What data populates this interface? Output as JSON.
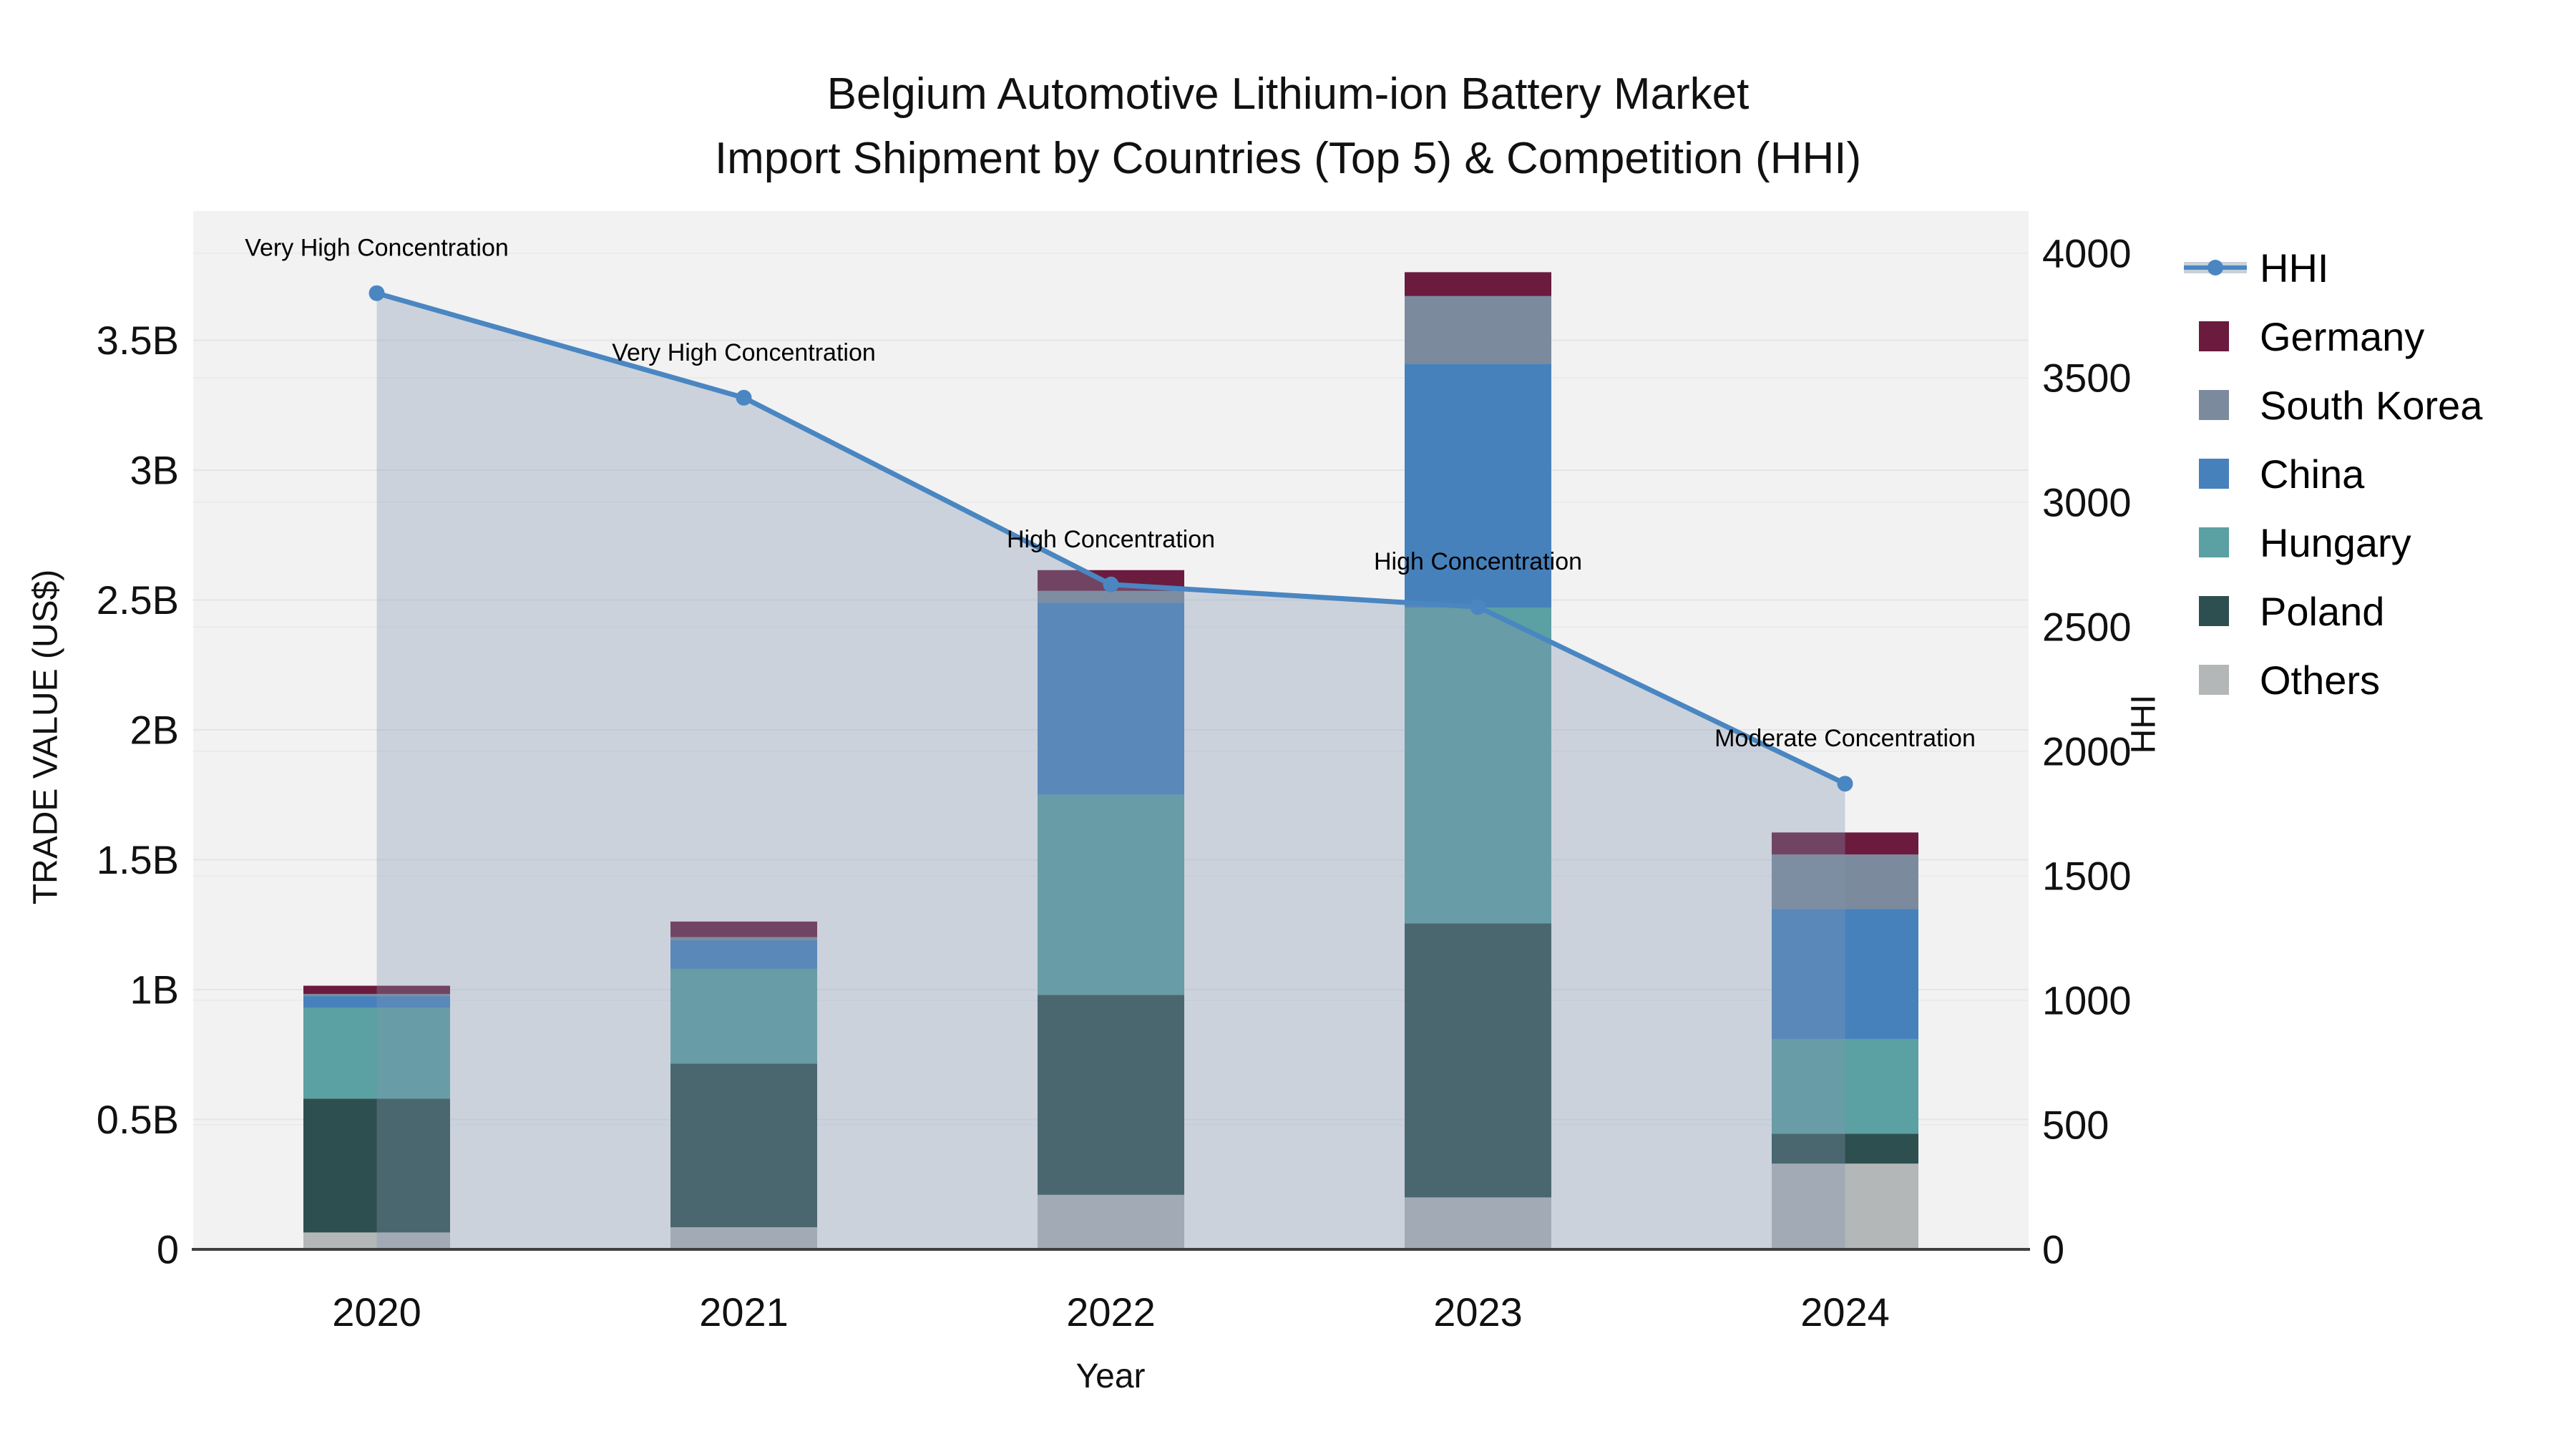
{
  "title": {
    "line1": "Belgium Automotive Lithium-ion Battery Market",
    "line2": "Import Shipment by Countries (Top 5) & Competition (HHI)"
  },
  "colors": {
    "paper_bg": "#ffffff",
    "plot_bg": "#f2f2f3",
    "grid_left": "#e4e5e8",
    "grid_right": "#eaebee",
    "axis_line": "#3f3f3f",
    "text": "#111111",
    "hhi_line": "#4a86c1",
    "hhi_fill": "#8296af",
    "hhi_fill_opacity": 0.34,
    "germany": "#6b1b3e",
    "south_korea": "#7b8b9d",
    "china": "#4781bc",
    "hungary": "#5ba0a2",
    "poland": "#2e4f50",
    "others": "#b4b7b8"
  },
  "chart_data": {
    "type": "bar+line",
    "title": "Belgium Automotive Lithium-ion Battery Market Import Shipment by Countries (Top 5) & Competition (HHI)",
    "categories": [
      "2020",
      "2021",
      "2022",
      "2023",
      "2024"
    ],
    "bar_unit": "billion US$",
    "stack_order_bottom_to_top": [
      "Others",
      "Poland",
      "Hungary",
      "China",
      "South Korea",
      "Germany"
    ],
    "series": [
      {
        "name": "Others",
        "color_key": "others",
        "values": [
          0.065,
          0.085,
          0.21,
          0.2,
          0.33
        ]
      },
      {
        "name": "Poland",
        "color_key": "poland",
        "values": [
          0.515,
          0.63,
          0.77,
          1.055,
          0.115
        ]
      },
      {
        "name": "Hungary",
        "color_key": "hungary",
        "values": [
          0.35,
          0.365,
          0.77,
          1.215,
          0.365
        ]
      },
      {
        "name": "China",
        "color_key": "china",
        "values": [
          0.045,
          0.11,
          0.74,
          0.94,
          0.5
        ]
      },
      {
        "name": "South Korea",
        "color_key": "south_korea",
        "values": [
          0.008,
          0.012,
          0.045,
          0.26,
          0.21
        ]
      },
      {
        "name": "Germany",
        "color_key": "germany",
        "values": [
          0.032,
          0.06,
          0.08,
          0.092,
          0.085
        ]
      }
    ],
    "bar_totals_busd": [
      1.015,
      1.262,
      2.615,
      3.762,
      1.605
    ],
    "line": {
      "name": "HHI",
      "values": [
        3840,
        3420,
        2670,
        2580,
        1870
      ]
    },
    "annotations": [
      "Very High Concentration",
      "Very High Concentration",
      "High Concentration",
      "High Concentration",
      "Moderate Concentration"
    ],
    "left_axis": {
      "title": "TRADE VALUE (US$)",
      "tick_labels": [
        "0",
        "0.5B",
        "1B",
        "1.5B",
        "2B",
        "2.5B",
        "3B",
        "3.5B"
      ],
      "tick_values_busd": [
        0,
        0.5,
        1,
        1.5,
        2,
        2.5,
        3,
        3.5
      ],
      "ylim": [
        0,
        4.0
      ],
      "grid": true
    },
    "right_axis": {
      "title": "HHI",
      "tick_labels": [
        "0",
        "500",
        "1000",
        "1500",
        "2000",
        "2500",
        "3000",
        "3500",
        "4000"
      ],
      "tick_values": [
        0,
        500,
        1000,
        1500,
        2000,
        2500,
        3000,
        3500,
        4000
      ],
      "ylim": [
        0,
        4000
      ],
      "grid": true
    },
    "x_axis": {
      "title": "Year"
    },
    "legend_position": "right"
  },
  "legend": {
    "items": [
      {
        "label": "HHI",
        "type": "line",
        "color_key": "hhi_line"
      },
      {
        "label": "Germany",
        "type": "square",
        "color_key": "germany"
      },
      {
        "label": "South Korea",
        "type": "square",
        "color_key": "south_korea"
      },
      {
        "label": "China",
        "type": "square",
        "color_key": "china"
      },
      {
        "label": "Hungary",
        "type": "square",
        "color_key": "hungary"
      },
      {
        "label": "Poland",
        "type": "square",
        "color_key": "poland"
      },
      {
        "label": "Others",
        "type": "square",
        "color_key": "others"
      }
    ]
  }
}
